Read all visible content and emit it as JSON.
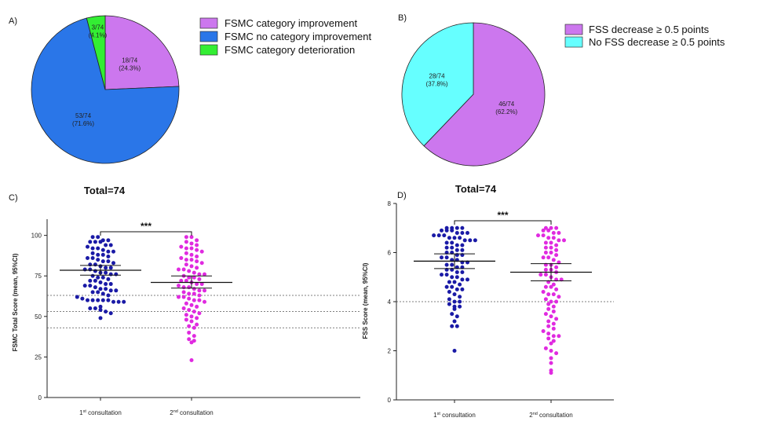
{
  "colors": {
    "purple": "#cc77ee",
    "blue": "#2a76e8",
    "green": "#33ee33",
    "cyan": "#66ffff",
    "navy": "#1a1aa6",
    "magenta": "#e02ae0"
  },
  "chart_data": [
    {
      "panel": "A)",
      "type": "pie",
      "slices": [
        {
          "name": "FSMC category improvement",
          "value": 18,
          "label": "18/74",
          "pct": "(24.3%)",
          "color": "#cc77ee"
        },
        {
          "name": "FSMC no category improvement",
          "value": 53,
          "label": "53/74",
          "pct": "(71.6%)",
          "color": "#2a76e8"
        },
        {
          "name": "FSMC category deterioration",
          "value": 3,
          "label": "3/74",
          "pct": "(4.1%)",
          "color": "#33ee33"
        }
      ],
      "legend": [
        "FSMC category improvement",
        "FSMC no category improvement",
        "FSMC category deterioration"
      ],
      "legend_position": "right",
      "footer": "Total=74"
    },
    {
      "panel": "B)",
      "type": "pie",
      "slices": [
        {
          "name": "FSS decrease ≥ 0.5 points",
          "value": 46,
          "label": "46/74",
          "pct": "(62.2%)",
          "color": "#cc77ee"
        },
        {
          "name": "No FSS decrease ≥ 0.5 points",
          "value": 28,
          "label": "28/74",
          "pct": "(37.8%)",
          "color": "#66ffff"
        }
      ],
      "legend": [
        "FSS decrease ≥ 0.5 points",
        "No FSS decrease ≥ 0.5 points"
      ],
      "legend_position": "right",
      "footer": "Total=74"
    },
    {
      "panel": "C)",
      "type": "scatter",
      "ylabel": "FSMC Total Score (mean, 95%CI)",
      "ylim": [
        0,
        110
      ],
      "yticks": [
        "0",
        "25",
        "50",
        "75",
        "100"
      ],
      "yticks_values": [
        0,
        25,
        50,
        75,
        100
      ],
      "categories": [
        "1st consultation",
        "2nd consultation"
      ],
      "category_main": [
        "1",
        "2"
      ],
      "category_sup": [
        "st",
        "nd"
      ],
      "category_rest": [
        " consultation",
        " consultation"
      ],
      "significance": "***",
      "reference_lines": [
        63,
        53,
        43
      ],
      "series": [
        {
          "mean": 78.5,
          "ci": [
            75.5,
            81.5
          ],
          "color": "#1a1aa6",
          "values": [
            99,
            99,
            97,
            97,
            96,
            96,
            96,
            94,
            94,
            93,
            92,
            92,
            91,
            90,
            90,
            89,
            88,
            88,
            87,
            86,
            86,
            85,
            84,
            84,
            83,
            82,
            82,
            81,
            80,
            80,
            79,
            79,
            78,
            77,
            77,
            76,
            76,
            75,
            74,
            74,
            73,
            72,
            72,
            71,
            70,
            70,
            69,
            69,
            68,
            67,
            67,
            66,
            66,
            65,
            65,
            64,
            63,
            62,
            61,
            60,
            60,
            60,
            60,
            60,
            59,
            59,
            59,
            56,
            55,
            55,
            54,
            53,
            52,
            49
          ]
        },
        {
          "mean": 71,
          "ci": [
            67.5,
            75
          ],
          "color": "#e02ae0",
          "values": [
            99,
            99,
            97,
            96,
            95,
            94,
            93,
            92,
            92,
            91,
            90,
            89,
            88,
            87,
            86,
            85,
            85,
            84,
            83,
            82,
            81,
            80,
            79,
            79,
            78,
            77,
            76,
            76,
            75,
            74,
            74,
            73,
            72,
            72,
            71,
            70,
            70,
            69,
            68,
            68,
            67,
            66,
            66,
            65,
            64,
            64,
            63,
            62,
            62,
            61,
            60,
            60,
            59,
            58,
            57,
            56,
            55,
            54,
            53,
            52,
            51,
            50,
            49,
            48,
            47,
            45,
            44,
            43,
            40,
            38,
            36,
            35,
            34,
            23
          ]
        }
      ]
    },
    {
      "panel": "D)",
      "type": "scatter",
      "ylabel": "FSS Score (mean, 95%CI)",
      "ylim": [
        0,
        8
      ],
      "yticks": [
        "0",
        "2",
        "4",
        "6",
        "8"
      ],
      "yticks_values": [
        0,
        2,
        4,
        6,
        8
      ],
      "categories": [
        "1st consultation",
        "2nd consultation"
      ],
      "category_main": [
        "1",
        "2"
      ],
      "category_sup": [
        "st",
        "nd"
      ],
      "category_rest": [
        " consultation",
        " consultation"
      ],
      "significance": "***",
      "reference_lines": [
        4
      ],
      "series": [
        {
          "mean": 5.65,
          "ci": [
            5.35,
            5.95
          ],
          "color": "#1a1aa6",
          "values": [
            7,
            7,
            7,
            7,
            6.9,
            6.9,
            6.9,
            6.8,
            6.8,
            6.8,
            6.7,
            6.7,
            6.7,
            6.6,
            6.6,
            6.6,
            6.5,
            6.5,
            6.5,
            6.4,
            6.4,
            6.3,
            6.3,
            6.2,
            6.2,
            6.1,
            6.1,
            6,
            6,
            5.9,
            5.9,
            5.8,
            5.8,
            5.7,
            5.7,
            5.6,
            5.6,
            5.5,
            5.5,
            5.4,
            5.4,
            5.3,
            5.3,
            5.2,
            5.2,
            5.1,
            5.1,
            5,
            5,
            4.9,
            4.9,
            4.8,
            4.8,
            4.7,
            4.6,
            4.6,
            4.5,
            4.5,
            4.4,
            4.3,
            4.2,
            4.1,
            4,
            4,
            3.9,
            3.8,
            3.8,
            3.7,
            3.5,
            3.4,
            3.2,
            3,
            3,
            2
          ]
        },
        {
          "mean": 5.2,
          "ci": [
            4.85,
            5.55
          ],
          "color": "#e02ae0",
          "values": [
            7,
            7,
            7,
            6.9,
            6.9,
            6.8,
            6.8,
            6.7,
            6.7,
            6.6,
            6.6,
            6.5,
            6.5,
            6.4,
            6.4,
            6.3,
            6.2,
            6.2,
            6.1,
            6,
            6,
            5.9,
            5.8,
            5.8,
            5.7,
            5.6,
            5.5,
            5.5,
            5.4,
            5.3,
            5.3,
            5.2,
            5.1,
            5.1,
            5,
            4.9,
            4.9,
            4.8,
            4.7,
            4.6,
            4.6,
            4.5,
            4.4,
            4.3,
            4.3,
            4.2,
            4.1,
            4,
            4,
            3.9,
            3.8,
            3.7,
            3.6,
            3.5,
            3.4,
            3.3,
            3.2,
            3.1,
            3,
            2.9,
            2.8,
            2.7,
            2.6,
            2.5,
            2.4,
            2.3,
            2.1,
            2,
            1.9,
            1.7,
            1.5,
            1.2,
            1.1,
            2.6
          ]
        }
      ]
    }
  ]
}
